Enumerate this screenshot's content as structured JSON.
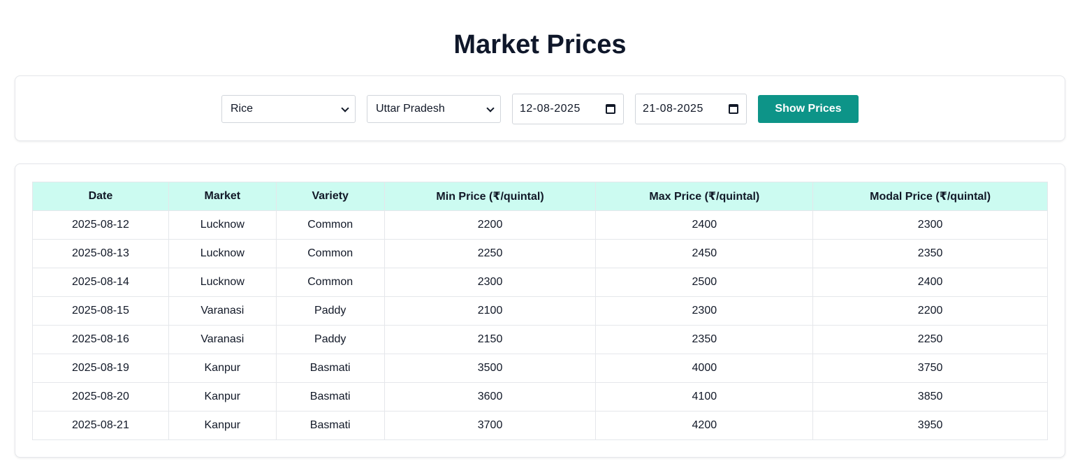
{
  "title": "Market Prices",
  "filters": {
    "commodity": "Rice",
    "state": "Uttar Pradesh",
    "from_date": "12-08-2025",
    "to_date": "21-08-2025",
    "submit_label": "Show Prices"
  },
  "table": {
    "columns": [
      "Date",
      "Market",
      "Variety",
      "Min Price (₹/quintal)",
      "Max Price (₹/quintal)",
      "Modal Price (₹/quintal)"
    ],
    "rows": [
      [
        "2025-08-12",
        "Lucknow",
        "Common",
        "2200",
        "2400",
        "2300"
      ],
      [
        "2025-08-13",
        "Lucknow",
        "Common",
        "2250",
        "2450",
        "2350"
      ],
      [
        "2025-08-14",
        "Lucknow",
        "Common",
        "2300",
        "2500",
        "2400"
      ],
      [
        "2025-08-15",
        "Varanasi",
        "Paddy",
        "2100",
        "2300",
        "2200"
      ],
      [
        "2025-08-16",
        "Varanasi",
        "Paddy",
        "2150",
        "2350",
        "2250"
      ],
      [
        "2025-08-19",
        "Kanpur",
        "Basmati",
        "3500",
        "4000",
        "3750"
      ],
      [
        "2025-08-20",
        "Kanpur",
        "Basmati",
        "3600",
        "4100",
        "3850"
      ],
      [
        "2025-08-21",
        "Kanpur",
        "Basmati",
        "3700",
        "4200",
        "3950"
      ]
    ]
  },
  "colors": {
    "accent": "#0d9488",
    "header_bg": "#ccfbf1"
  }
}
